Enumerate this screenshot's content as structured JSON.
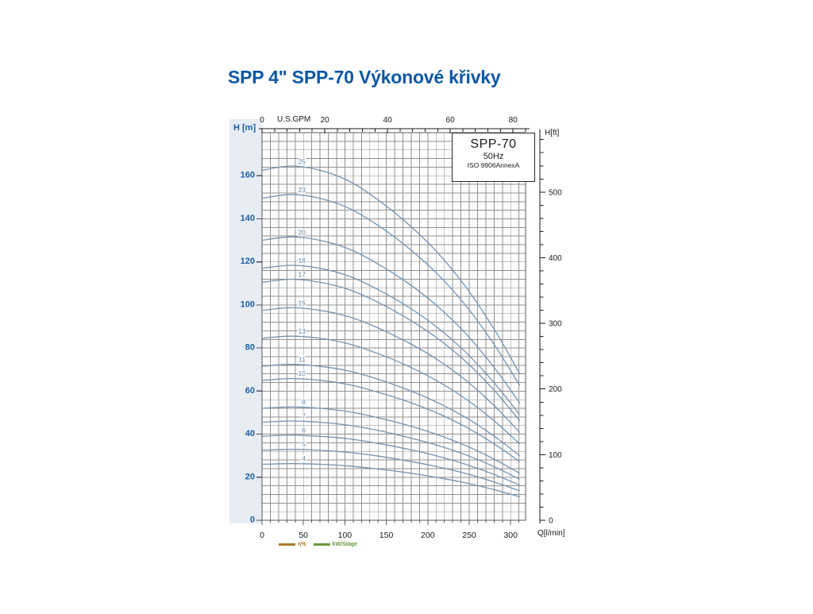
{
  "title": {
    "text": "SPP 4\" SPP-70 Výkonové křivky",
    "color": "#0d57a7"
  },
  "info_box": {
    "model": "SPP-70",
    "frequency": "50Hz",
    "standard": "ISO 9906AnnexA"
  },
  "legend": {
    "efficiency": {
      "label": "η%",
      "color": "#a87c2e"
    },
    "power_per_stage": {
      "label": "kW/Stage",
      "color": "#66993d"
    }
  },
  "chart_data": {
    "type": "line",
    "title": "SPP 4\" SPP-70 Výkonové křivky",
    "description": "Pump head curves H(Q) for SPP-70 with different stage counts",
    "grid": true,
    "curve_color": "#7493b3",
    "curve_label_color": "#5d86ab",
    "axes": {
      "bottom": {
        "label": "Q[l/min]",
        "ticks": [
          0,
          50,
          100,
          150,
          200,
          250,
          300
        ],
        "minor_step": 10,
        "range": [
          0,
          318
        ]
      },
      "top": {
        "label": "U.S.GPM",
        "ticks": [
          0,
          20,
          40,
          60,
          80
        ],
        "minor_step": 4,
        "lmin_per_gpm": 3.78541
      },
      "left": {
        "label": "H [m]",
        "ticks": [
          0,
          20,
          40,
          60,
          80,
          100,
          120,
          140,
          160
        ],
        "minor_step": 4,
        "range": [
          0,
          180
        ],
        "color": "#1a5fa8"
      },
      "right": {
        "label": "H[ft]",
        "ticks": [
          0,
          100,
          200,
          300,
          400,
          500
        ],
        "minor_step": 20,
        "m_per_ft": 0.3048
      }
    },
    "x_lmin": [
      0,
      35,
      70,
      105,
      140,
      175,
      210,
      245,
      280,
      311
    ],
    "series": [
      {
        "name": "4",
        "stages": 4,
        "values": [
          26.0,
          26.3,
          26.0,
          25.2,
          23.8,
          22.1,
          20.0,
          17.4,
          14.2,
          10.9
        ]
      },
      {
        "name": "5",
        "stages": 5,
        "values": [
          32.5,
          32.9,
          32.5,
          31.5,
          29.8,
          27.6,
          25.0,
          21.8,
          17.8,
          13.6
        ]
      },
      {
        "name": "6",
        "stages": 6,
        "values": [
          39.0,
          39.5,
          39.0,
          37.8,
          35.7,
          33.1,
          30.0,
          26.1,
          21.3,
          16.3
        ]
      },
      {
        "name": "7",
        "stages": 7,
        "values": [
          45.5,
          46.1,
          45.5,
          44.1,
          41.7,
          38.6,
          35.0,
          30.5,
          24.9,
          19.0
        ]
      },
      {
        "name": "8",
        "stages": 8,
        "values": [
          52.0,
          52.6,
          52.0,
          50.4,
          47.6,
          44.2,
          40.0,
          34.8,
          28.4,
          21.8
        ]
      },
      {
        "name": "10",
        "stages": 10,
        "values": [
          65.0,
          65.8,
          65.0,
          63.0,
          59.5,
          55.2,
          50.0,
          43.5,
          35.5,
          27.2
        ]
      },
      {
        "name": "11",
        "stages": 11,
        "values": [
          71.5,
          72.4,
          71.5,
          69.3,
          65.5,
          60.7,
          55.0,
          47.9,
          39.1,
          29.9
        ]
      },
      {
        "name": "13",
        "stages": 13,
        "values": [
          84.5,
          85.5,
          84.5,
          81.9,
          77.4,
          71.8,
          65.0,
          56.6,
          46.2,
          35.4
        ]
      },
      {
        "name": "15",
        "stages": 15,
        "values": [
          97.5,
          98.7,
          97.5,
          94.5,
          89.3,
          82.8,
          75.0,
          65.3,
          53.3,
          40.8
        ]
      },
      {
        "name": "17",
        "stages": 17,
        "values": [
          110.5,
          111.9,
          110.5,
          107.1,
          101.2,
          93.8,
          85.0,
          74.0,
          60.4,
          46.2
        ]
      },
      {
        "name": "18",
        "stages": 18,
        "values": [
          117.0,
          118.4,
          117.0,
          113.4,
          107.1,
          99.4,
          90.0,
          78.3,
          63.9,
          49.0
        ]
      },
      {
        "name": "20",
        "stages": 20,
        "values": [
          130.0,
          131.6,
          130.0,
          126.0,
          119.0,
          110.4,
          100.0,
          87.0,
          71.0,
          54.4
        ]
      },
      {
        "name": "23",
        "stages": 23,
        "values": [
          149.5,
          151.3,
          149.5,
          144.9,
          136.9,
          127.0,
          115.0,
          100.1,
          81.7,
          62.6
        ]
      },
      {
        "name": "25",
        "stages": 25,
        "values": [
          162.5,
          164.5,
          162.5,
          157.5,
          148.8,
          138.0,
          125.0,
          108.8,
          88.8,
          68.0
        ]
      }
    ]
  },
  "colors": {
    "grid": "#919191",
    "frame": "#5a5a5a",
    "axis_line": "#1a1a1a",
    "black_text": "#1a1a1a",
    "blue_text": "#1a5fa8",
    "left_strip": "#e8edf3",
    "plot_bg": "#fdfdfd"
  }
}
